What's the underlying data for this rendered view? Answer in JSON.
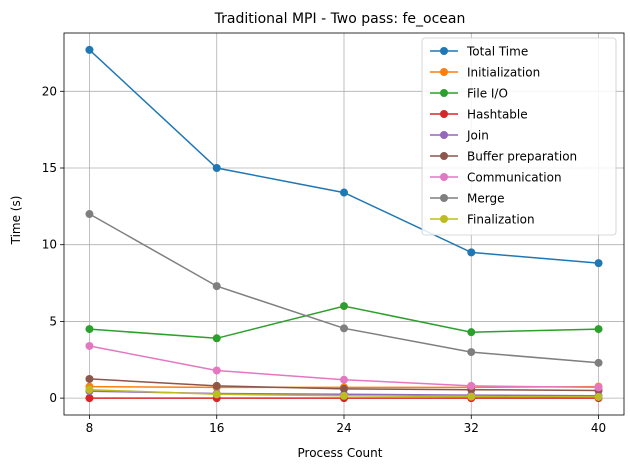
{
  "chart_data": {
    "type": "line",
    "title": "Traditional MPI - Two pass: fe_ocean",
    "xlabel": "Process Count",
    "ylabel": "Time (s)",
    "x": [
      8,
      16,
      24,
      32,
      40
    ],
    "xticks": [
      8,
      16,
      24,
      32,
      40
    ],
    "xticklabels": [
      "8",
      "16",
      "24",
      "32",
      "40"
    ],
    "xlim": [
      6.4,
      41.6
    ],
    "yticks": [
      0,
      5,
      10,
      15,
      20
    ],
    "yticklabels": [
      "0",
      "5",
      "10",
      "15",
      "20"
    ],
    "ylim": [
      -1.1,
      23.8
    ],
    "grid": true,
    "legend_position": "top-right",
    "series": [
      {
        "name": "Total Time",
        "color": "#1f77b4",
        "values": [
          22.7,
          15.0,
          13.4,
          9.5,
          8.8
        ]
      },
      {
        "name": "Initialization",
        "color": "#ff7f0e",
        "values": [
          0.75,
          0.7,
          0.7,
          0.7,
          0.75
        ]
      },
      {
        "name": "File I/O",
        "color": "#2ca02c",
        "values": [
          4.5,
          3.9,
          6.0,
          4.3,
          4.5
        ]
      },
      {
        "name": "Hashtable",
        "color": "#d62728",
        "values": [
          0.0,
          0.0,
          0.0,
          0.0,
          0.0
        ]
      },
      {
        "name": "Join",
        "color": "#9467bd",
        "values": [
          0.45,
          0.3,
          0.25,
          0.2,
          0.15
        ]
      },
      {
        "name": "Buffer preparation",
        "color": "#8c564b",
        "values": [
          1.25,
          0.8,
          0.6,
          0.55,
          0.5
        ]
      },
      {
        "name": "Communication",
        "color": "#e377c2",
        "values": [
          3.4,
          1.8,
          1.2,
          0.8,
          0.7
        ]
      },
      {
        "name": "Merge",
        "color": "#7f7f7f",
        "values": [
          12.0,
          7.3,
          4.55,
          3.0,
          2.3
        ]
      },
      {
        "name": "Finalization",
        "color": "#bcbd22",
        "values": [
          0.55,
          0.25,
          0.15,
          0.1,
          0.08
        ]
      }
    ]
  }
}
